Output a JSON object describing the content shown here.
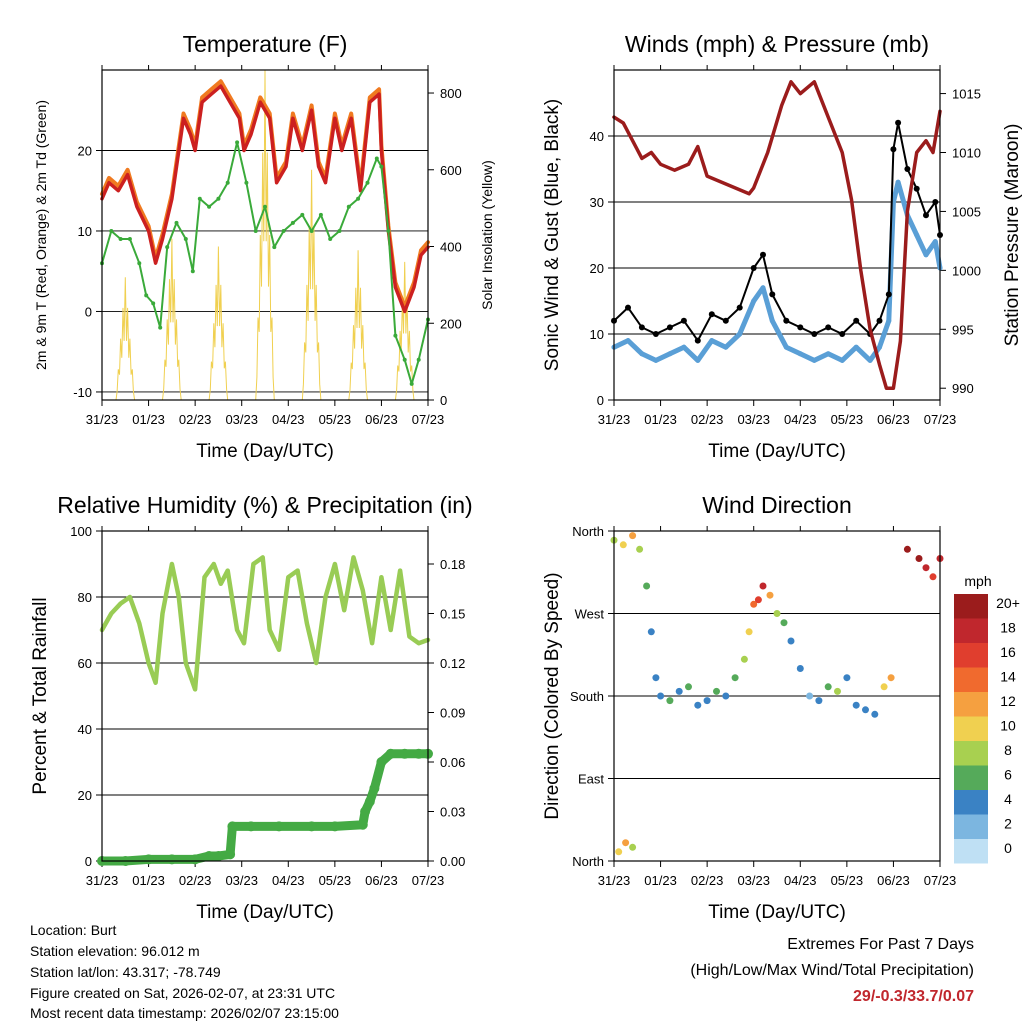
{
  "colors": {
    "temp_2m": "#cc2020",
    "temp_9m": "#f07a20",
    "dewpoint": "#3aaa3a",
    "solar": "#f0d050",
    "wind": "#5a9fd6",
    "gust": "#000000",
    "pressure": "#9b1c1c",
    "rh": "#99cc55",
    "precip": "#44aa44",
    "extremes": "#c0272d"
  },
  "x_ticks": [
    "31/23",
    "01/23",
    "02/23",
    "03/23",
    "04/23",
    "05/23",
    "06/23",
    "07/23"
  ],
  "chart_data": [
    {
      "id": "temperature",
      "type": "line",
      "title": "Temperature (F)",
      "xlabel": "Time (Day/UTC)",
      "ylabel": "2m & 9m T (Red, Orange) & 2m Td (Green)",
      "y2label": "Solar Insolation (Yellow)",
      "ylim": [
        -11,
        30
      ],
      "y2lim": [
        0,
        860
      ],
      "yticks": [
        "20",
        "10",
        "0",
        "-10"
      ],
      "y2ticks": [
        "800",
        "600",
        "400",
        "200",
        "0"
      ],
      "series": [
        {
          "name": "2m T",
          "color_key": "temp_2m",
          "x": [
            0,
            0.15,
            0.35,
            0.55,
            0.75,
            1.0,
            1.15,
            1.3,
            1.5,
            1.75,
            1.9,
            2.0,
            2.15,
            2.35,
            2.55,
            2.75,
            2.95,
            3.05,
            3.2,
            3.4,
            3.6,
            3.75,
            3.95,
            4.1,
            4.3,
            4.5,
            4.65,
            4.8,
            5.0,
            5.15,
            5.35,
            5.55,
            5.75,
            5.95,
            6.0,
            6.15,
            6.3,
            6.5,
            6.7,
            6.85,
            7.0
          ],
          "values": [
            14,
            16,
            15,
            17,
            13,
            10,
            6,
            9,
            14,
            24,
            22,
            20,
            26,
            27,
            28,
            26,
            24,
            20,
            22,
            26,
            24,
            16,
            18,
            24,
            20,
            25,
            18,
            16,
            24,
            20,
            24,
            15,
            26,
            27,
            20,
            10,
            3,
            0,
            3,
            7,
            8
          ]
        },
        {
          "name": "2m Td",
          "color_key": "dewpoint",
          "x": [
            0,
            0.2,
            0.4,
            0.6,
            0.8,
            0.95,
            1.1,
            1.25,
            1.4,
            1.6,
            1.8,
            1.95,
            2.1,
            2.3,
            2.5,
            2.7,
            2.9,
            3.1,
            3.3,
            3.5,
            3.7,
            3.9,
            4.1,
            4.3,
            4.5,
            4.7,
            4.9,
            5.1,
            5.3,
            5.5,
            5.7,
            5.9,
            6.0,
            6.15,
            6.3,
            6.5,
            6.65,
            6.8,
            7.0
          ],
          "values": [
            6,
            10,
            9,
            9,
            6,
            2,
            1,
            -2,
            8,
            11,
            9,
            5,
            14,
            13,
            14,
            16,
            21,
            16,
            10,
            13,
            8,
            10,
            11,
            12,
            10,
            12,
            9,
            10,
            13,
            14,
            16,
            19,
            18,
            10,
            -3,
            -6,
            -9,
            -6,
            -1
          ]
        },
        {
          "name": "Solar Insolation",
          "axis": "y2",
          "color_key": "solar",
          "day_peaks": [
            {
              "day": 0.5,
              "value": 320
            },
            {
              "day": 1.5,
              "value": 420
            },
            {
              "day": 2.5,
              "value": 400
            },
            {
              "day": 3.5,
              "value": 860
            },
            {
              "day": 4.5,
              "value": 600
            },
            {
              "day": 5.5,
              "value": 390
            },
            {
              "day": 6.5,
              "value": 360
            }
          ]
        }
      ]
    },
    {
      "id": "winds",
      "type": "line",
      "title": "Winds (mph) & Pressure (mb)",
      "xlabel": "Time (Day/UTC)",
      "ylabel": "Sonic Wind & Gust (Blue, Black)",
      "y2label": "Station Pressure (Maroon)",
      "ylim": [
        0,
        50
      ],
      "y2lim": [
        989,
        1017
      ],
      "yticks": [
        "40",
        "30",
        "20",
        "10",
        "0"
      ],
      "y2ticks": [
        "1015",
        "1010",
        "1005",
        "1000",
        "995",
        "990"
      ],
      "series": [
        {
          "name": "Gust",
          "color_key": "gust",
          "x": [
            0,
            0.3,
            0.6,
            0.9,
            1.2,
            1.5,
            1.8,
            2.1,
            2.4,
            2.7,
            3.0,
            3.2,
            3.4,
            3.7,
            4.0,
            4.3,
            4.6,
            4.9,
            5.2,
            5.5,
            5.7,
            5.9,
            6.0,
            6.1,
            6.3,
            6.5,
            6.7,
            6.9,
            7.0
          ],
          "values": [
            12,
            14,
            11,
            10,
            11,
            12,
            9,
            13,
            12,
            14,
            20,
            22,
            16,
            12,
            11,
            10,
            11,
            10,
            12,
            10,
            12,
            16,
            38,
            42,
            35,
            32,
            28,
            30,
            25
          ]
        },
        {
          "name": "Sonic Wind",
          "color_key": "wind",
          "x": [
            0,
            0.3,
            0.6,
            0.9,
            1.2,
            1.5,
            1.8,
            2.1,
            2.4,
            2.7,
            3.0,
            3.2,
            3.4,
            3.7,
            4.0,
            4.3,
            4.6,
            4.9,
            5.2,
            5.5,
            5.7,
            5.9,
            6.0,
            6.1,
            6.3,
            6.5,
            6.7,
            6.9,
            7.0
          ],
          "values": [
            8,
            9,
            7,
            6,
            7,
            8,
            6,
            9,
            8,
            10,
            15,
            17,
            12,
            8,
            7,
            6,
            7,
            6,
            8,
            6,
            8,
            12,
            30,
            33,
            28,
            25,
            22,
            24,
            20
          ]
        },
        {
          "name": "Station Pressure",
          "axis": "y2",
          "color_key": "pressure",
          "x": [
            0,
            0.2,
            0.4,
            0.6,
            0.8,
            1.0,
            1.3,
            1.6,
            1.8,
            2.0,
            2.3,
            2.6,
            2.9,
            3.0,
            3.3,
            3.6,
            3.8,
            4.0,
            4.3,
            4.6,
            4.9,
            5.1,
            5.3,
            5.5,
            5.7,
            5.85,
            6.0,
            6.15,
            6.3,
            6.5,
            6.7,
            6.85,
            7.0
          ],
          "values": [
            1013,
            1012.5,
            1011,
            1009.5,
            1010,
            1009,
            1008.5,
            1009,
            1010.5,
            1008,
            1007.5,
            1007,
            1006.5,
            1007,
            1010,
            1014,
            1016,
            1015,
            1016,
            1013,
            1010,
            1006,
            1000,
            995,
            992,
            990,
            990,
            994,
            1005,
            1010,
            1011,
            1010,
            1013.5
          ]
        }
      ]
    },
    {
      "id": "humidity",
      "type": "line",
      "title": "Relative Humidity (%) & Precipitation (in)",
      "xlabel": "Time (Day/UTC)",
      "ylabel": "Percent & Total Rainfall",
      "ylim": [
        0,
        100
      ],
      "y2lim": [
        0,
        0.2
      ],
      "yticks": [
        "100",
        "80",
        "60",
        "40",
        "20",
        "0"
      ],
      "y2ticks": [
        "0.18",
        "0.15",
        "0.12",
        "0.09",
        "0.06",
        "0.03",
        "0.00"
      ],
      "series": [
        {
          "name": "Relative Humidity",
          "color_key": "rh",
          "x": [
            0,
            0.2,
            0.4,
            0.6,
            0.8,
            1.0,
            1.15,
            1.3,
            1.5,
            1.65,
            1.8,
            2.0,
            2.2,
            2.4,
            2.55,
            2.7,
            2.9,
            3.05,
            3.25,
            3.45,
            3.6,
            3.8,
            4.0,
            4.2,
            4.4,
            4.6,
            4.8,
            5.0,
            5.2,
            5.4,
            5.6,
            5.8,
            6.0,
            6.2,
            6.4,
            6.6,
            6.8,
            7.0
          ],
          "values": [
            70,
            75,
            78,
            80,
            72,
            60,
            54,
            75,
            90,
            80,
            60,
            52,
            86,
            90,
            84,
            88,
            70,
            66,
            90,
            92,
            70,
            64,
            86,
            88,
            72,
            60,
            80,
            90,
            76,
            92,
            82,
            66,
            86,
            70,
            88,
            68,
            66,
            67
          ]
        },
        {
          "name": "Total Rainfall",
          "axis": "y2",
          "color_key": "precip",
          "x": [
            0,
            0.5,
            1.0,
            1.5,
            2.0,
            2.3,
            2.5,
            2.75,
            2.8,
            3.2,
            3.8,
            4.5,
            5.0,
            5.6,
            5.65,
            5.75,
            5.85,
            6.0,
            6.2,
            6.5,
            6.8,
            7.0
          ],
          "values": [
            0,
            0,
            0.001,
            0.001,
            0.001,
            0.003,
            0.003,
            0.004,
            0.021,
            0.021,
            0.021,
            0.021,
            0.021,
            0.022,
            0.03,
            0.036,
            0.044,
            0.06,
            0.065,
            0.065,
            0.065,
            0.065
          ]
        }
      ]
    },
    {
      "id": "direction",
      "type": "scatter",
      "title": "Wind Direction",
      "xlabel": "Time (Day/UTC)",
      "ylabel": "Direction (Colored By Speed)",
      "ylim": [
        0,
        360
      ],
      "yticks": [
        "North",
        "West",
        "South",
        "East",
        "North"
      ],
      "colorbar_title": "mph",
      "colorbar_labels": [
        "20+",
        "18",
        "16",
        "14",
        "12",
        "10",
        "8",
        "6",
        "4",
        "2",
        "0"
      ],
      "colorbar_colors": [
        "#9b1c1c",
        "#c0272d",
        "#e03e2e",
        "#f06a2e",
        "#f5a040",
        "#f0d050",
        "#a8d050",
        "#55aa5a",
        "#3a82c4",
        "#7cb6e0",
        "#bfe0f4"
      ],
      "series": [
        {
          "name": "Direction",
          "x": [
            0,
            0.2,
            0.4,
            0.55,
            0.7,
            0.8,
            0.9,
            1.0,
            1.2,
            1.4,
            1.6,
            1.8,
            2.0,
            2.2,
            2.4,
            2.6,
            2.8,
            2.9,
            3.0,
            3.1,
            3.2,
            3.35,
            3.5,
            3.65,
            3.8,
            4.0,
            4.2,
            4.4,
            4.6,
            4.8,
            5.0,
            5.2,
            5.4,
            5.6,
            5.8,
            5.95,
            6.3,
            6.55,
            6.7,
            6.85,
            7.0,
            0.1,
            0.25,
            0.4
          ],
          "values": [
            350,
            345,
            355,
            340,
            300,
            250,
            200,
            180,
            175,
            185,
            190,
            170,
            175,
            185,
            180,
            200,
            220,
            250,
            280,
            285,
            300,
            290,
            270,
            260,
            240,
            210,
            180,
            175,
            190,
            185,
            200,
            170,
            165,
            160,
            190,
            200,
            340,
            330,
            320,
            310,
            330,
            10,
            20,
            15
          ],
          "speeds": [
            8,
            10,
            12,
            8,
            6,
            4,
            5,
            4,
            6,
            5,
            7,
            4,
            5,
            6,
            5,
            6,
            8,
            10,
            14,
            16,
            18,
            12,
            8,
            6,
            5,
            4,
            3,
            5,
            6,
            8,
            5,
            4,
            5,
            4,
            10,
            12,
            20,
            20,
            18,
            16,
            18,
            10,
            12,
            8
          ]
        }
      ]
    }
  ],
  "info": {
    "location": "Location: Burt",
    "elevation": "Station elevation: 96.012 m",
    "latlon": "Station lat/lon: 43.317; -78.749",
    "created": "Figure created on Sat, 2026-02-07, at 23:31 UTC",
    "recent": "Most recent data timestamp: 2026/02/07 23:15:00"
  },
  "extremes": {
    "title": "Extremes For Past 7 Days",
    "subtitle": "(High/Low/Max Wind/Total Precipitation)",
    "values": "29/-0.3/33.7/0.07"
  }
}
